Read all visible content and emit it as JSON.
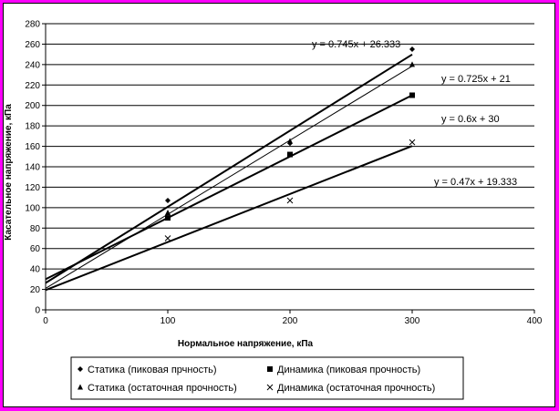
{
  "chart_data": {
    "type": "scatter",
    "xlabel": "Нормальное напряжение, кПа",
    "ylabel": "Касательное напряжение, кПа",
    "xlim": [
      0,
      400
    ],
    "ylim": [
      0,
      280
    ],
    "x_ticks": [
      0,
      100,
      200,
      300,
      400
    ],
    "y_ticks": [
      0,
      20,
      40,
      60,
      80,
      100,
      120,
      140,
      160,
      180,
      200,
      220,
      240,
      260,
      280
    ],
    "grid": "horizontal",
    "legend_position": "bottom",
    "series": [
      {
        "name": "Статика (пиковая прчность)",
        "marker": "diamond",
        "x": [
          100,
          200,
          300
        ],
        "y": [
          107,
          163,
          255
        ],
        "trend": {
          "slope": 0.745,
          "intercept": 26.333,
          "label": "y = 0.745x + 26.333"
        }
      },
      {
        "name": "Статика (остаточная прочность)",
        "marker": "triangle",
        "x": [
          100,
          200,
          300
        ],
        "y": [
          95,
          165,
          240
        ],
        "trend": {
          "slope": 0.725,
          "intercept": 21,
          "label": "y = 0.725x + 21"
        }
      },
      {
        "name": "Динамика (пиковая прочность)",
        "marker": "square",
        "x": [
          100,
          200,
          300
        ],
        "y": [
          90,
          152,
          210
        ],
        "trend": {
          "slope": 0.6,
          "intercept": 30,
          "label": "y = 0.6x + 30"
        }
      },
      {
        "name": "Динамика (остаточная прочность)",
        "marker": "x",
        "x": [
          100,
          200,
          300
        ],
        "y": [
          70,
          107,
          164
        ],
        "trend": {
          "slope": 0.47,
          "intercept": 19.333,
          "label": "y = 0.47x + 19.333"
        }
      }
    ]
  }
}
